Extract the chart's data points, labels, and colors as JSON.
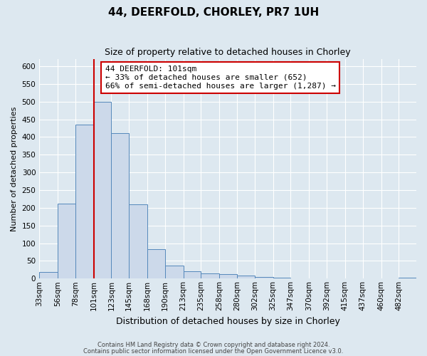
{
  "title": "44, DEERFOLD, CHORLEY, PR7 1UH",
  "subtitle": "Size of property relative to detached houses in Chorley",
  "xlabel": "Distribution of detached houses by size in Chorley",
  "ylabel": "Number of detached properties",
  "footer_lines": [
    "Contains HM Land Registry data © Crown copyright and database right 2024.",
    "Contains public sector information licensed under the Open Government Licence v3.0."
  ],
  "bin_labels": [
    "33sqm",
    "56sqm",
    "78sqm",
    "101sqm",
    "123sqm",
    "145sqm",
    "168sqm",
    "190sqm",
    "213sqm",
    "235sqm",
    "258sqm",
    "280sqm",
    "302sqm",
    "325sqm",
    "347sqm",
    "370sqm",
    "392sqm",
    "415sqm",
    "437sqm",
    "460sqm",
    "482sqm"
  ],
  "bin_edges": [
    33,
    56,
    78,
    101,
    123,
    145,
    168,
    190,
    213,
    235,
    258,
    280,
    302,
    325,
    347,
    370,
    392,
    415,
    437,
    460,
    482,
    504
  ],
  "bar_heights": [
    18,
    212,
    435,
    500,
    410,
    210,
    83,
    36,
    20,
    15,
    12,
    8,
    5,
    2,
    1,
    1,
    0,
    0,
    0,
    0,
    3
  ],
  "bar_color": "#ccd9ea",
  "bar_edge_color": "#5588bb",
  "ylim": [
    0,
    620
  ],
  "yticks": [
    0,
    50,
    100,
    150,
    200,
    250,
    300,
    350,
    400,
    450,
    500,
    550,
    600
  ],
  "property_sqm": 101,
  "vline_color": "#cc0000",
  "annotation_text_line1": "44 DEERFOLD: 101sqm",
  "annotation_text_line2": "← 33% of detached houses are smaller (652)",
  "annotation_text_line3": "66% of semi-detached houses are larger (1,287) →",
  "annotation_box_facecolor": "#ffffff",
  "annotation_box_edgecolor": "#cc0000",
  "bg_color": "#dde8f0",
  "plot_bg_color": "#dde8f0",
  "grid_color": "#ffffff",
  "title_fontsize": 11,
  "subtitle_fontsize": 9,
  "xlabel_fontsize": 9,
  "ylabel_fontsize": 8,
  "tick_fontsize": 7.5,
  "annotation_fontsize": 8
}
